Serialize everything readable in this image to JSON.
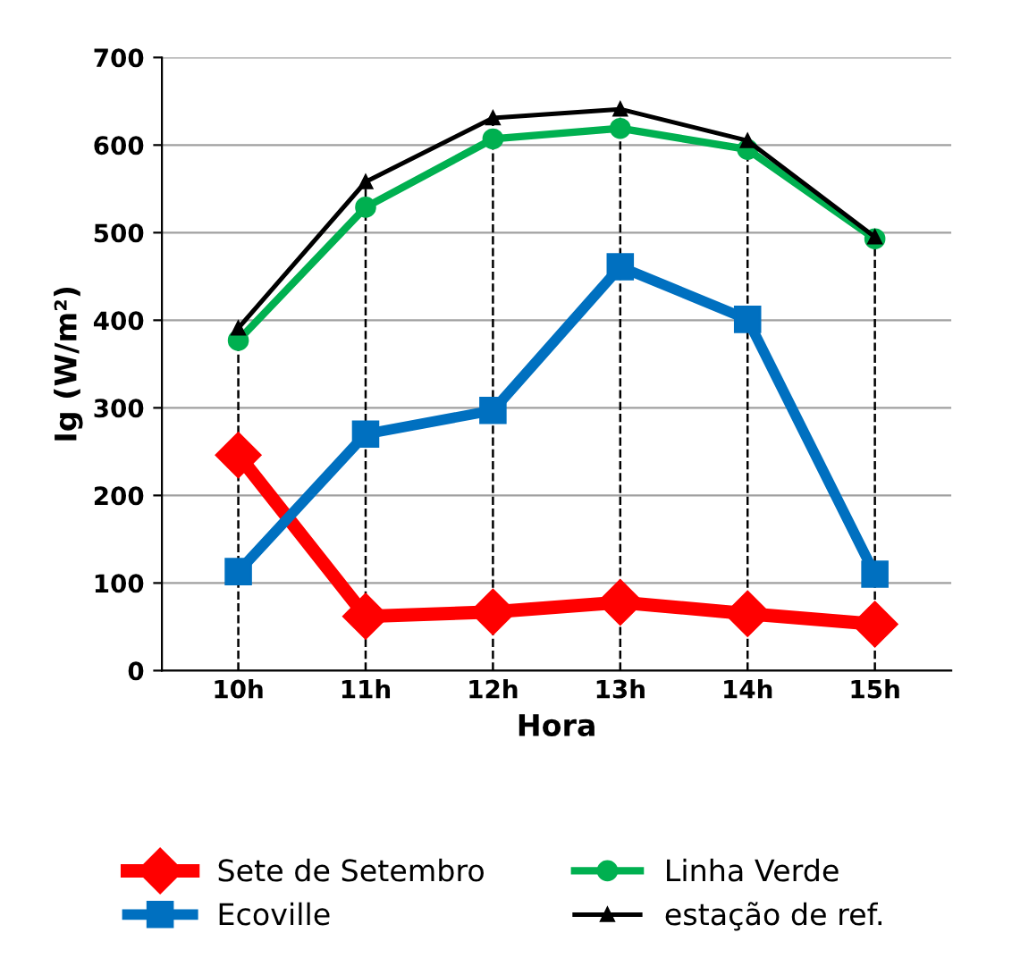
{
  "chart_data": {
    "type": "line",
    "xlabel": "Hora",
    "ylabel": "Ig (W/m²)",
    "categories": [
      "10h",
      "11h",
      "12h",
      "13h",
      "14h",
      "15h"
    ],
    "series": [
      {
        "name": "Sete de Setembro",
        "color": "#ff0000",
        "marker": "diamond",
        "values": [
          246,
          62,
          67,
          78,
          65,
          53
        ]
      },
      {
        "name": "Ecoville",
        "color": "#0070c0",
        "marker": "square",
        "values": [
          113,
          270,
          297,
          461,
          401,
          110
        ]
      },
      {
        "name": "Linha Verde",
        "color": "#00b050",
        "marker": "circle",
        "values": [
          377,
          529,
          607,
          619,
          595,
          493
        ]
      },
      {
        "name": "estação de ref.",
        "color": "#000000",
        "marker": "triangle",
        "values": [
          391,
          558,
          631,
          641,
          605,
          495
        ]
      }
    ],
    "ylim": [
      0,
      700
    ],
    "yticks": [
      0,
      100,
      200,
      300,
      400,
      500,
      600,
      700
    ],
    "grid": "y",
    "legend": "bottom",
    "line_style": "solid",
    "ref_lines": [
      {
        "axis": "x",
        "value": "10h",
        "color": "#000000",
        "line_style": "dashed"
      },
      {
        "axis": "x",
        "value": "11h",
        "color": "#000000",
        "line_style": "dashed"
      },
      {
        "axis": "x",
        "value": "12h",
        "color": "#000000",
        "line_style": "dashed"
      },
      {
        "axis": "x",
        "value": "13h",
        "color": "#000000",
        "line_style": "dashed"
      },
      {
        "axis": "x",
        "value": "14h",
        "color": "#000000",
        "line_style": "dashed"
      },
      {
        "axis": "x",
        "value": "15h",
        "color": "#000000",
        "line_style": "dashed"
      }
    ]
  }
}
